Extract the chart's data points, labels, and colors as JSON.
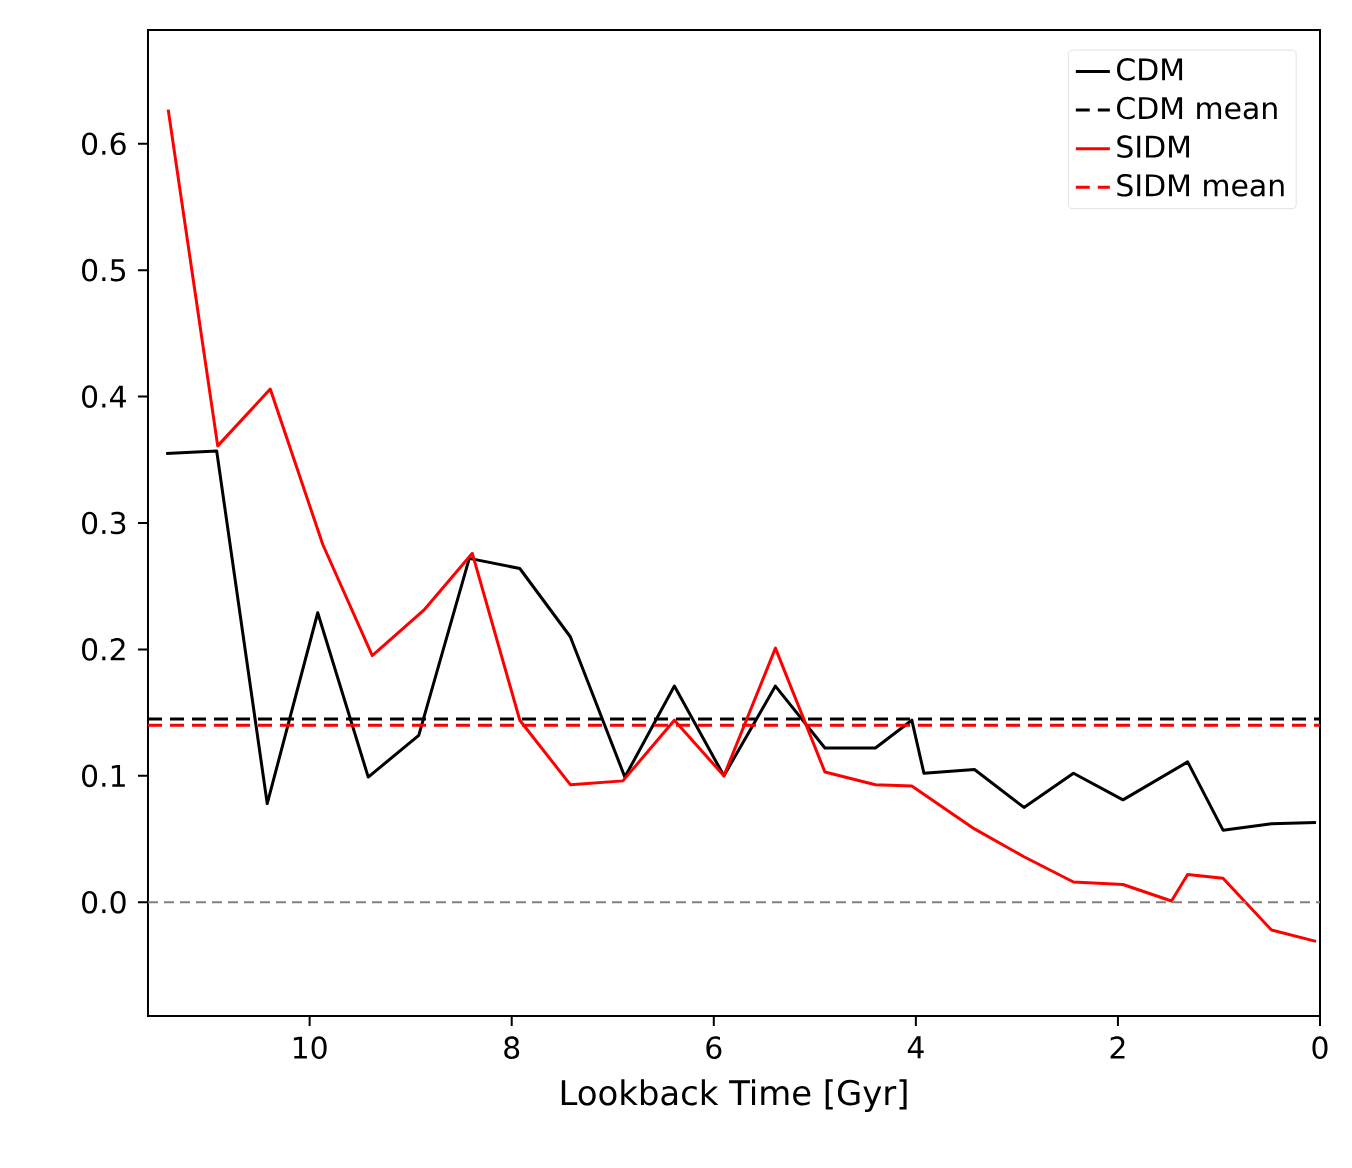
{
  "chart_data": {
    "type": "line",
    "xlabel": "Lookback Time [Gyr]",
    "xlim": [
      11.6,
      0
    ],
    "ylim": [
      -0.09,
      0.69
    ],
    "xticks": [
      10,
      8,
      6,
      4,
      2,
      0
    ],
    "yticks": [
      {
        "value": 0,
        "label": "0.0"
      },
      {
        "value": 0.1,
        "label": "0.1"
      },
      {
        "value": 0.2,
        "label": "0.2"
      },
      {
        "value": 0.3,
        "label": "0.3"
      },
      {
        "value": 0.4,
        "label": "0.4"
      },
      {
        "value": 0.5,
        "label": "0.5"
      },
      {
        "value": 0.6,
        "label": "0.6"
      }
    ],
    "legend": "top right",
    "grid": false,
    "marker": "none",
    "line_style": "solid",
    "series": [
      {
        "name": "CDM",
        "color": "#000000",
        "x": [
          11.42,
          10.92,
          10.42,
          9.92,
          9.42,
          8.92,
          8.42,
          7.92,
          7.42,
          6.88,
          6.39,
          5.9,
          5.39,
          4.9,
          4.4,
          4.04,
          3.92,
          3.42,
          2.93,
          2.44,
          1.95,
          1.31,
          0.96,
          0.48,
          0.04
        ],
        "values": [
          0.355,
          0.357,
          0.078,
          0.229,
          0.099,
          0.132,
          0.272,
          0.264,
          0.21,
          0.099,
          0.171,
          0.1,
          0.171,
          0.122,
          0.122,
          0.144,
          0.102,
          0.105,
          0.075,
          0.102,
          0.081,
          0.111,
          0.057,
          0.062,
          0.063
        ]
      },
      {
        "name": "CDM mean",
        "color": "#000000",
        "line_style": "dashed",
        "x": [
          11.6,
          0
        ],
        "values": [
          0.145,
          0.145
        ]
      },
      {
        "name": "SIDM",
        "color": "#ff0000",
        "x": [
          11.4,
          10.91,
          10.39,
          9.87,
          9.38,
          8.87,
          8.39,
          7.92,
          7.42,
          6.9,
          6.39,
          5.9,
          5.39,
          4.9,
          4.4,
          4.04,
          3.42,
          2.93,
          2.44,
          1.95,
          1.47,
          1.31,
          0.96,
          0.48,
          0.04
        ],
        "values": [
          0.627,
          0.361,
          0.406,
          0.283,
          0.195,
          0.231,
          0.276,
          0.144,
          0.093,
          0.096,
          0.144,
          0.1,
          0.201,
          0.103,
          0.093,
          0.092,
          0.058,
          0.036,
          0.016,
          0.014,
          0.001,
          0.022,
          0.019,
          -0.022,
          -0.031
        ]
      },
      {
        "name": "SIDM mean",
        "color": "#ff0000",
        "line_style": "dashed",
        "x": [
          11.6,
          0
        ],
        "values": [
          0.14,
          0.14
        ]
      }
    ],
    "ref_lines": [
      {
        "axis": "y",
        "value": 0,
        "color": "#808080",
        "line_style": "dashed"
      }
    ]
  }
}
